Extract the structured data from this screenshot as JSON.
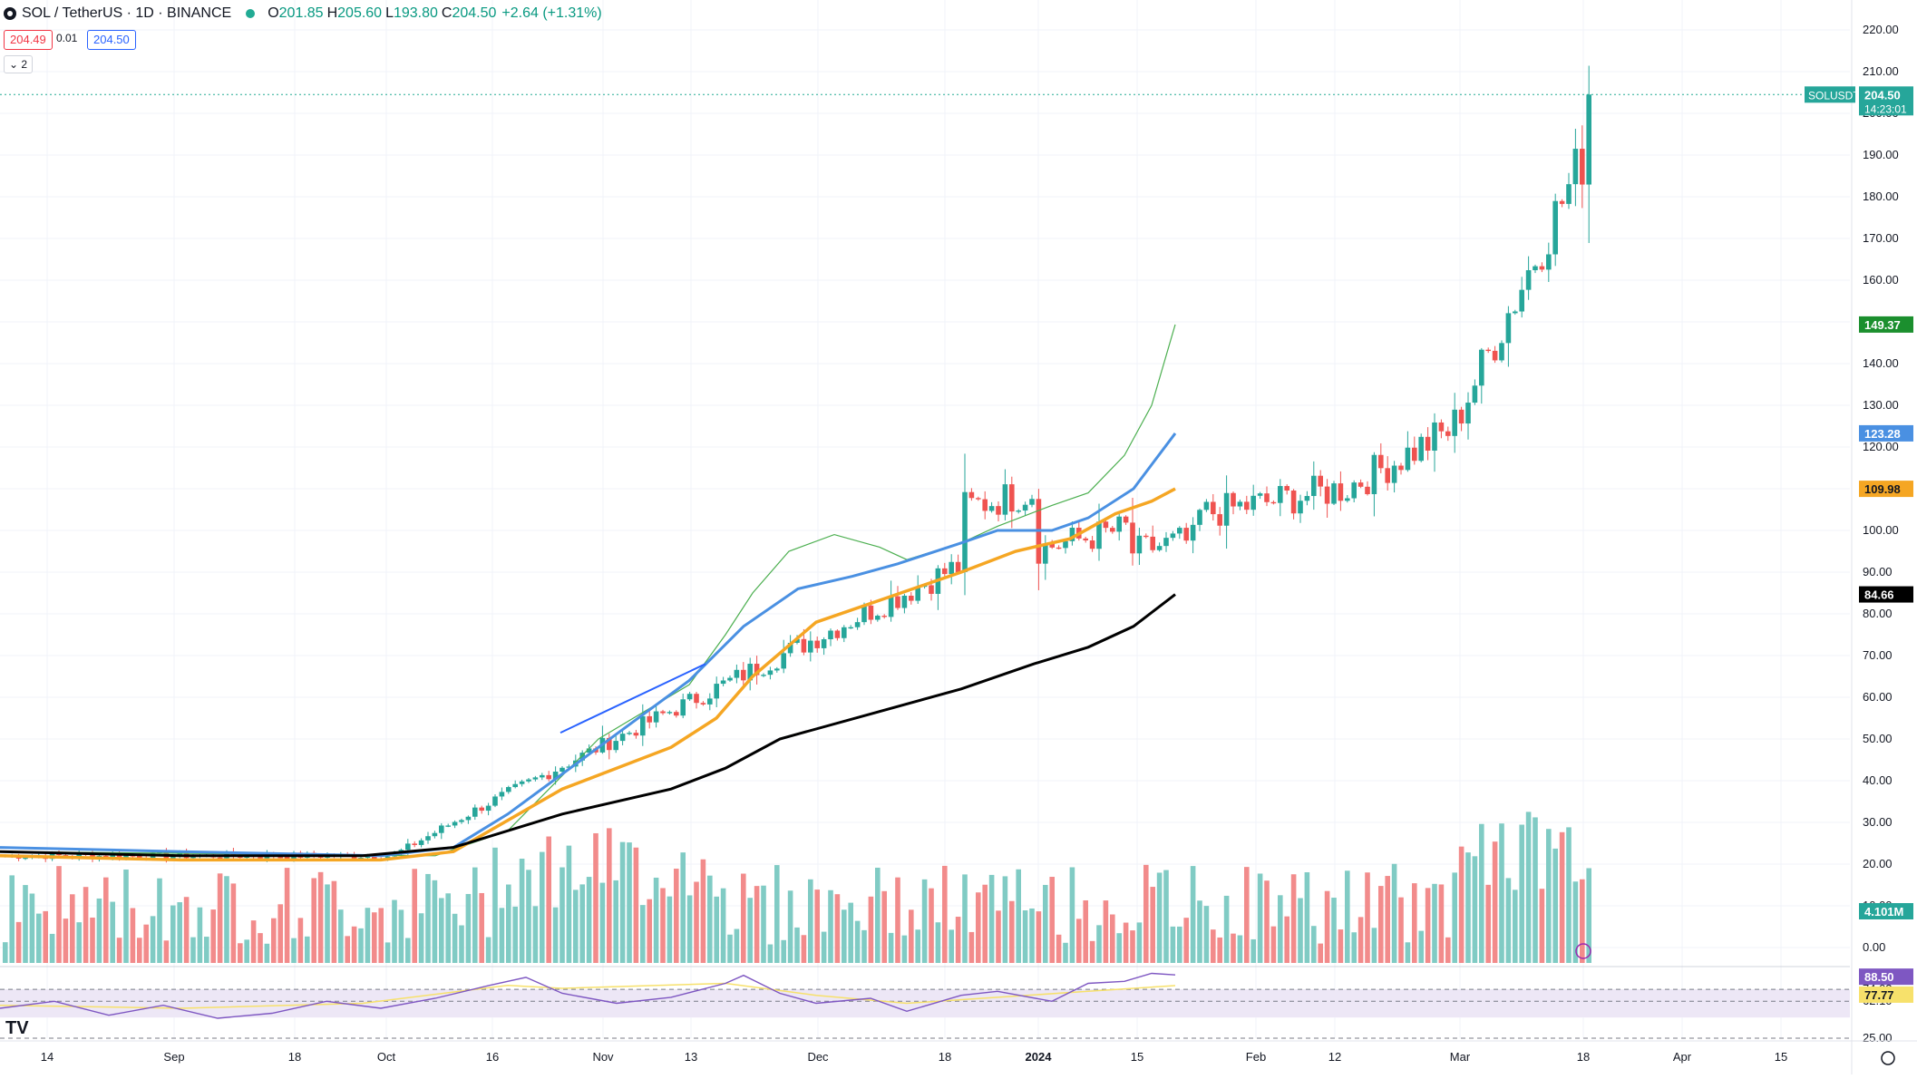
{
  "header": {
    "symbol": "SOL / TetherUS · 1D · BINANCE",
    "open_label": "O",
    "open": "201.85",
    "high_label": "H",
    "high": "205.60",
    "low_label": "L",
    "low": "193.80",
    "close_label": "C",
    "close": "204.50",
    "change": "+2.64 (+1.31%)",
    "sell_price": "204.49",
    "spread": "0.01",
    "buy_price": "204.50",
    "indicators_collapsed": "2"
  },
  "colors": {
    "up": "#26a69a",
    "down": "#ef5350",
    "vol_up": "#80cbc4",
    "vol_down": "#f28b8b",
    "ma_green": "#4caf50",
    "ma_blue": "#4a90e2",
    "ma_orange": "#f5a623",
    "ma_black": "#000000",
    "rsi": "#7e57c2",
    "rsi_ma": "#f7e16b",
    "rsi_band": "#ede7f6"
  },
  "chart_data": {
    "type": "candlestick",
    "y_axis": {
      "ticks": [
        "220.00",
        "210.00",
        "200.00",
        "190.00",
        "180.00",
        "170.00",
        "160.00",
        "150.00",
        "140.00",
        "130.00",
        "120.00",
        "110.00",
        "100.00",
        "90.00",
        "80.00",
        "70.00",
        "60.00",
        "50.00",
        "40.00",
        "30.00",
        "20.00",
        "10.00",
        "0.00"
      ]
    },
    "x_axis": {
      "ticks": [
        "14",
        "Sep",
        "18",
        "Oct",
        "16",
        "Nov",
        "13",
        "Dec",
        "18",
        "2024",
        "15",
        "Feb",
        "12",
        "Mar",
        "18",
        "Apr",
        "15"
      ]
    },
    "series": [
      {
        "name": "SOLUSDT",
        "label": "SOLUSDT",
        "last": "204.50",
        "countdown": "14:23:01"
      },
      {
        "name": "",
        "last": "149.37"
      },
      {
        "name": "",
        "last": "123.28"
      },
      {
        "name": "",
        "last": "109.98"
      },
      {
        "name": "",
        "last": "84.66"
      },
      {
        "name": "",
        "last": "4.101M"
      }
    ],
    "ma_points": {
      "green": [
        [
          0,
          23
        ],
        [
          480,
          22
        ],
        [
          560,
          28
        ],
        [
          660,
          50
        ],
        [
          760,
          63
        ],
        [
          800,
          75
        ],
        [
          830,
          85
        ],
        [
          870,
          95
        ],
        [
          920,
          99
        ],
        [
          970,
          96
        ],
        [
          1000,
          93
        ],
        [
          1060,
          97
        ],
        [
          1100,
          101
        ],
        [
          1160,
          106
        ],
        [
          1200,
          109
        ],
        [
          1240,
          118
        ],
        [
          1270,
          130
        ],
        [
          1296,
          149.37
        ]
      ],
      "blue": [
        [
          0,
          24
        ],
        [
          200,
          23
        ],
        [
          420,
          22
        ],
        [
          500,
          24
        ],
        [
          560,
          32
        ],
        [
          660,
          48
        ],
        [
          760,
          64
        ],
        [
          820,
          77
        ],
        [
          880,
          86
        ],
        [
          940,
          89
        ],
        [
          990,
          92
        ],
        [
          1060,
          97
        ],
        [
          1100,
          100
        ],
        [
          1160,
          100
        ],
        [
          1200,
          103
        ],
        [
          1250,
          110
        ],
        [
          1296,
          123.28
        ]
      ],
      "orange": [
        [
          0,
          22
        ],
        [
          200,
          21
        ],
        [
          420,
          21
        ],
        [
          500,
          23
        ],
        [
          620,
          38
        ],
        [
          740,
          48
        ],
        [
          790,
          55
        ],
        [
          830,
          65
        ],
        [
          900,
          78
        ],
        [
          980,
          84
        ],
        [
          1060,
          90
        ],
        [
          1120,
          95
        ],
        [
          1180,
          98
        ],
        [
          1230,
          104
        ],
        [
          1270,
          107
        ],
        [
          1296,
          109.98
        ]
      ],
      "black": [
        [
          0,
          23
        ],
        [
          200,
          22
        ],
        [
          400,
          22
        ],
        [
          500,
          24
        ],
        [
          620,
          32
        ],
        [
          740,
          38
        ],
        [
          800,
          43
        ],
        [
          860,
          50
        ],
        [
          960,
          56
        ],
        [
          1060,
          62
        ],
        [
          1140,
          68
        ],
        [
          1200,
          72
        ],
        [
          1250,
          77
        ],
        [
          1296,
          84.66
        ]
      ]
    },
    "trendline": [
      [
        618,
        51.5
      ],
      [
        778,
        68
      ]
    ],
    "rsi": {
      "levels": [
        "88.50",
        "77.77",
        "74.03",
        "62.10",
        "25.00"
      ],
      "points": [
        [
          0,
          55
        ],
        [
          60,
          62
        ],
        [
          120,
          48
        ],
        [
          180,
          58
        ],
        [
          240,
          45
        ],
        [
          300,
          50
        ],
        [
          360,
          62
        ],
        [
          420,
          55
        ],
        [
          480,
          65
        ],
        [
          540,
          78
        ],
        [
          580,
          86
        ],
        [
          620,
          70
        ],
        [
          680,
          60
        ],
        [
          740,
          66
        ],
        [
          800,
          80
        ],
        [
          820,
          88
        ],
        [
          860,
          70
        ],
        [
          900,
          60
        ],
        [
          960,
          65
        ],
        [
          1000,
          52
        ],
        [
          1060,
          68
        ],
        [
          1100,
          72
        ],
        [
          1160,
          62
        ],
        [
          1200,
          80
        ],
        [
          1240,
          82
        ],
        [
          1270,
          90
        ],
        [
          1296,
          88.5
        ]
      ],
      "ma_points": [
        [
          0,
          58
        ],
        [
          200,
          55
        ],
        [
          400,
          60
        ],
        [
          560,
          78
        ],
        [
          620,
          75
        ],
        [
          800,
          80
        ],
        [
          900,
          68
        ],
        [
          1000,
          60
        ],
        [
          1100,
          66
        ],
        [
          1200,
          72
        ],
        [
          1296,
          77.77
        ]
      ]
    }
  }
}
